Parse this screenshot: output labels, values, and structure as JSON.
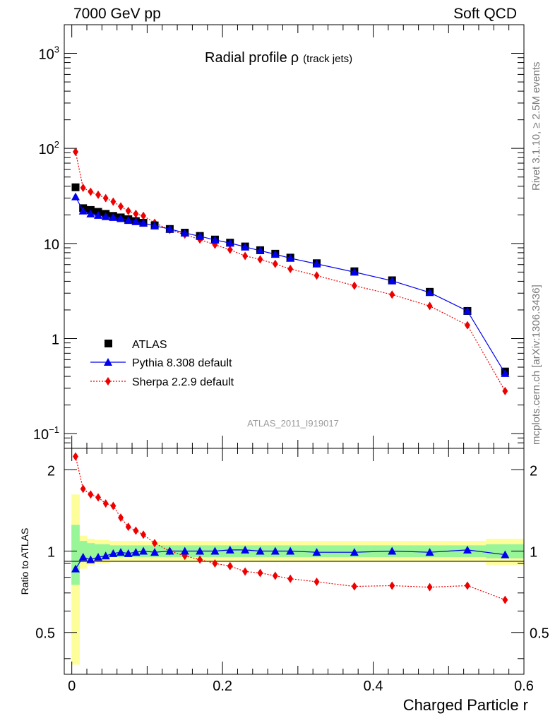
{
  "header": {
    "left": "7000 GeV pp",
    "right": "Soft QCD"
  },
  "side": {
    "rivet": "Rivet 3.1.10, ≥ 2.5M events",
    "mcplots": "mcplots.cern.ch [arXiv:1306.3436]"
  },
  "chart_data": {
    "type": "scatter",
    "title_main": "Radial profile",
    "title_symbol": "ρ",
    "title_sub": "(track jets)",
    "analysis_id": "ATLAS_2011_I919017",
    "xlabel": "Charged Particle r",
    "ylabel_ratio": "Ratio to ATLAS",
    "xlim": [
      -0.01,
      0.6
    ],
    "ylim_main": [
      0.07,
      2000
    ],
    "ylim_ratio": [
      0.35,
      2.4
    ],
    "x_ticks": [
      {
        "v": 0,
        "label": "0"
      },
      {
        "v": 0.2,
        "label": "0.2"
      },
      {
        "v": 0.4,
        "label": "0.4"
      },
      {
        "v": 0.6,
        "label": "0.6"
      }
    ],
    "main_ticks": [
      {
        "v": 0.1,
        "base": "10",
        "exp": "−1"
      },
      {
        "v": 1,
        "base": "1",
        "exp": ""
      },
      {
        "v": 10,
        "base": "10",
        "exp": ""
      },
      {
        "v": 100,
        "base": "10",
        "exp": "2"
      },
      {
        "v": 1000,
        "base": "10",
        "exp": "3"
      }
    ],
    "ratio_ticks": [
      {
        "v": 0.5,
        "label": "0.5"
      },
      {
        "v": 1,
        "label": "1"
      },
      {
        "v": 2,
        "label": "2"
      }
    ],
    "legend": [
      {
        "name": "ATLAS",
        "color": "#000000",
        "marker": "square",
        "line": "none"
      },
      {
        "name": "Pythia 8.308 default",
        "color": "#0000ee",
        "marker": "triangle",
        "line": "solid"
      },
      {
        "name": "Sherpa 2.2.9 default",
        "color": "#ee0000",
        "marker": "diamond",
        "line": "dotted"
      }
    ],
    "x": [
      0.005,
      0.015,
      0.025,
      0.035,
      0.045,
      0.055,
      0.065,
      0.075,
      0.085,
      0.095,
      0.11,
      0.13,
      0.15,
      0.17,
      0.19,
      0.21,
      0.23,
      0.25,
      0.27,
      0.29,
      0.325,
      0.375,
      0.425,
      0.475,
      0.525,
      0.575
    ],
    "series": [
      {
        "name": "ATLAS",
        "values": [
          39,
          23.5,
          22.5,
          21.5,
          20.5,
          19.5,
          18.8,
          18,
          17.2,
          16.5,
          15.5,
          14.2,
          13,
          12,
          11,
          10.2,
          9.3,
          8.5,
          7.8,
          7.1,
          6.2,
          5.1,
          4.1,
          3.1,
          1.95,
          0.45
        ]
      },
      {
        "name": "Pythia 8.308 default",
        "values": [
          31,
          22,
          20.5,
          19.8,
          19.2,
          18.8,
          18.3,
          17.5,
          17,
          16.4,
          15.3,
          14.2,
          12.9,
          11.9,
          10.9,
          10.1,
          9.2,
          8.4,
          7.7,
          7.0,
          6.1,
          5.0,
          4.05,
          3.05,
          1.95,
          0.43
        ]
      },
      {
        "name": "Sherpa 2.2.9 default",
        "values": [
          92,
          38.5,
          35,
          32.5,
          30,
          27.5,
          24.5,
          22,
          20.5,
          19.5,
          16.5,
          13.9,
          12.4,
          11,
          9.7,
          8.6,
          7.4,
          6.8,
          6.1,
          5.4,
          4.6,
          3.6,
          2.9,
          2.2,
          1.38,
          0.28
        ]
      }
    ],
    "ratio_series": [
      {
        "name": "Pythia 8.308 default",
        "values": [
          0.86,
          0.95,
          0.93,
          0.95,
          0.96,
          0.98,
          0.99,
          0.98,
          0.99,
          1.0,
          0.99,
          1.0,
          1.0,
          1.0,
          1.0,
          1.01,
          1.01,
          1.0,
          1.0,
          1.0,
          0.99,
          0.99,
          1.0,
          0.99,
          1.01,
          0.97
        ]
      },
      {
        "name": "Sherpa 2.2.9 default",
        "values": [
          2.24,
          1.7,
          1.62,
          1.58,
          1.5,
          1.47,
          1.33,
          1.23,
          1.19,
          1.15,
          1.07,
          1.0,
          0.96,
          0.93,
          0.9,
          0.88,
          0.84,
          0.83,
          0.81,
          0.79,
          0.77,
          0.74,
          0.745,
          0.735,
          0.745,
          0.66
        ]
      }
    ],
    "uncertainty_bands": {
      "inner_color": "#98f598",
      "outer_color": "#fdfd9a",
      "inner_half_width": [
        0.25,
        0.09,
        0.07,
        0.06,
        0.06,
        0.05,
        0.05,
        0.05,
        0.05,
        0.05,
        0.05,
        0.05,
        0.05,
        0.05,
        0.05,
        0.05,
        0.05,
        0.05,
        0.05,
        0.05,
        0.05,
        0.05,
        0.05,
        0.05,
        0.05,
        0.06
      ],
      "outer_half_width": [
        0.62,
        0.14,
        0.11,
        0.1,
        0.1,
        0.09,
        0.09,
        0.09,
        0.09,
        0.09,
        0.09,
        0.09,
        0.09,
        0.09,
        0.09,
        0.09,
        0.09,
        0.09,
        0.09,
        0.09,
        0.09,
        0.09,
        0.09,
        0.09,
        0.09,
        0.11
      ]
    }
  }
}
